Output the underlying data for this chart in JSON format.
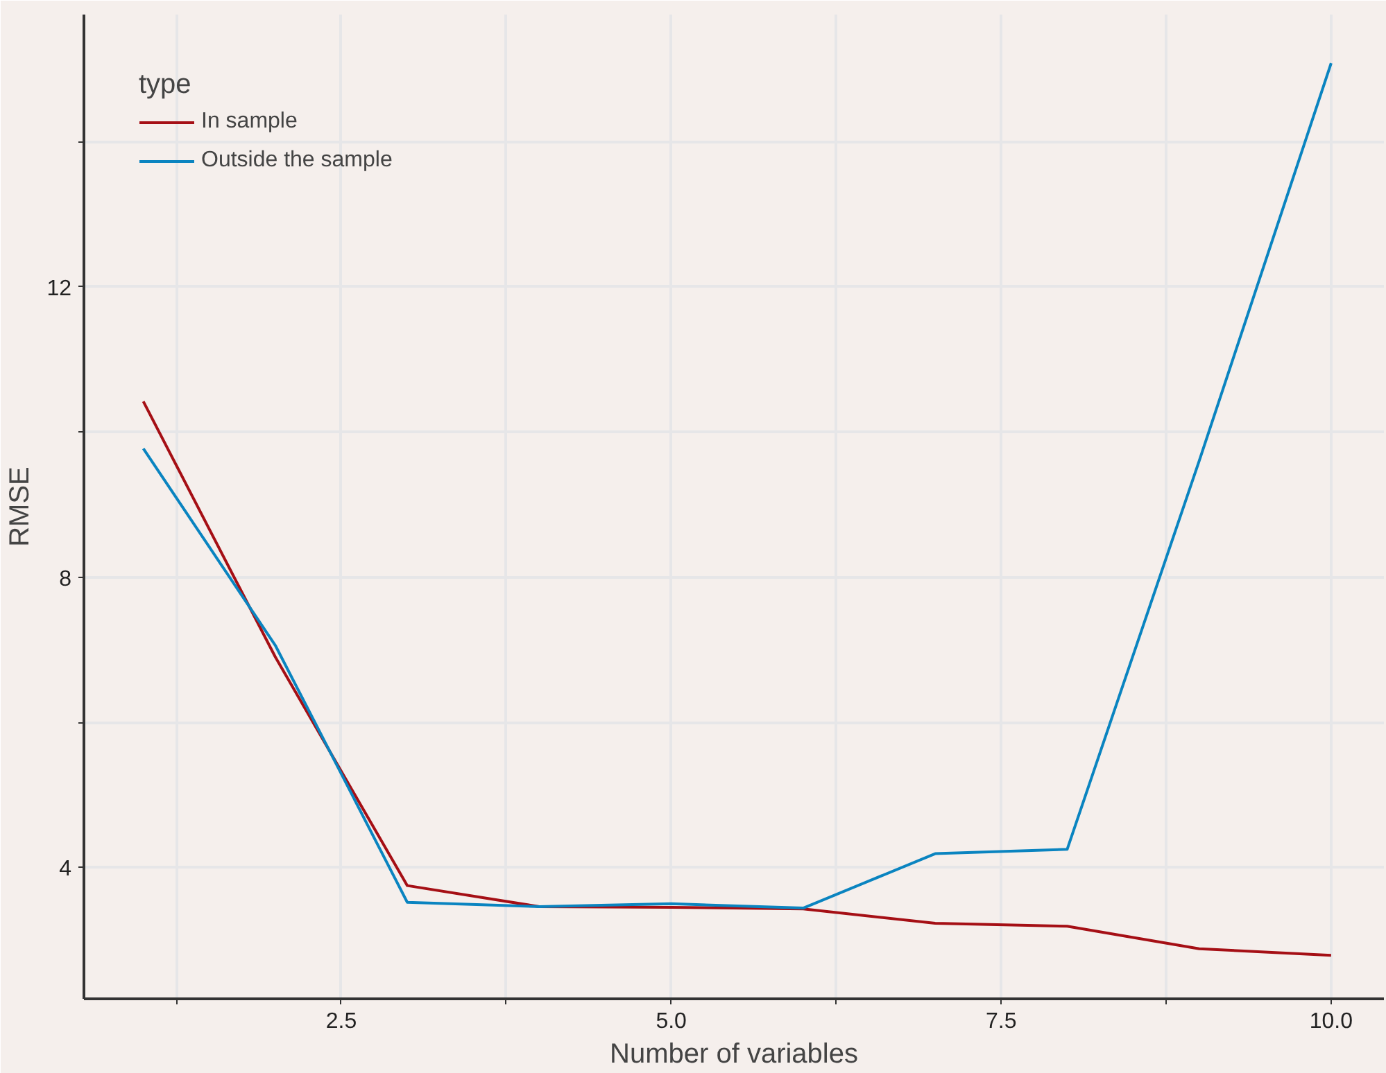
{
  "chart_data": {
    "type": "line",
    "xlabel": "Number of variables",
    "ylabel": "RMSE",
    "legend_title": "type",
    "x": [
      1,
      2,
      3,
      4,
      5,
      6,
      7,
      8,
      9,
      10
    ],
    "series": [
      {
        "name": "In sample",
        "color": "#a50f15",
        "values": [
          10.42,
          6.9,
          3.75,
          3.46,
          3.45,
          3.43,
          3.23,
          3.19,
          2.88,
          2.79
        ]
      },
      {
        "name": "Outside the sample",
        "color": "#0a84c0",
        "values": [
          9.77,
          7.06,
          3.52,
          3.46,
          3.5,
          3.44,
          4.19,
          4.25,
          9.6,
          15.08
        ]
      }
    ],
    "xlim": [
      0.55,
      10.4
    ],
    "ylim": [
      2.19,
      15.75
    ],
    "xticks": [
      {
        "value": 1.25,
        "label": null
      },
      2.5,
      {
        "value": 3.75,
        "label": null
      },
      {
        "value": 5,
        "label": "5.0"
      },
      {
        "value": 6.25,
        "label": null
      },
      7.5,
      {
        "value": 8.75,
        "label": null
      },
      {
        "value": 10,
        "label": "10.0"
      }
    ],
    "yticks": [
      4,
      {
        "value": 6,
        "label": null
      },
      8,
      {
        "value": 10,
        "label": null
      },
      12,
      {
        "value": 14,
        "label": null
      }
    ],
    "grid": true,
    "legend": "top left",
    "line_style": "solid"
  }
}
